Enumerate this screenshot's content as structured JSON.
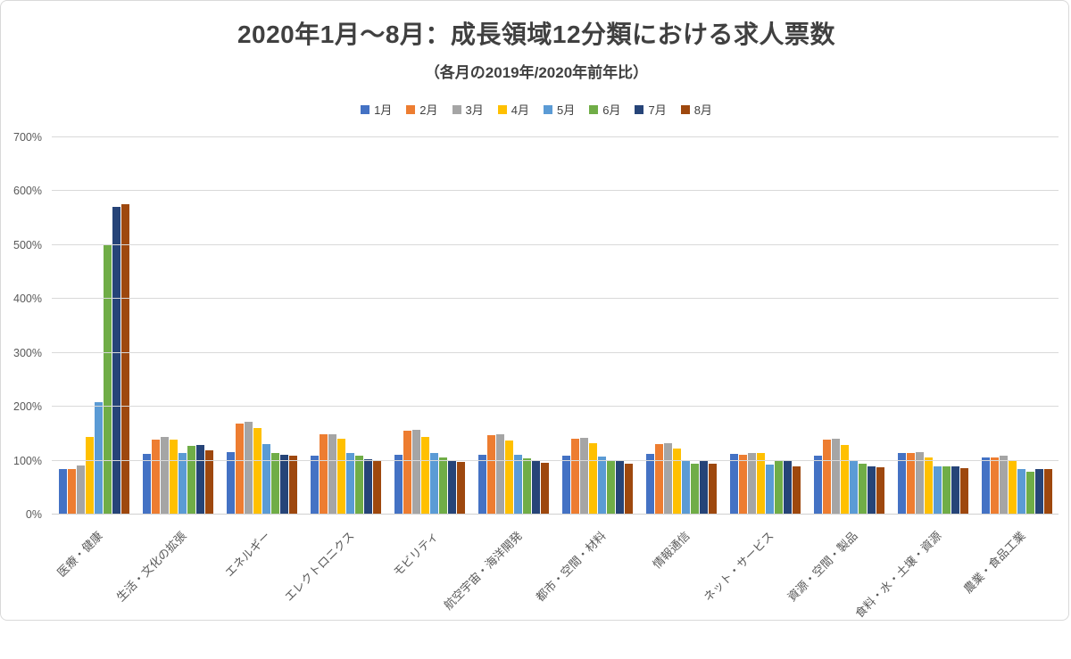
{
  "page": {
    "background": "#ffffff",
    "border_color": "#d9d9d9"
  },
  "colors": {
    "title_text": "#404040",
    "axis_text": "#595959",
    "gridline": "#d9d9d9"
  },
  "chart_data": {
    "type": "bar",
    "title": "2020年1月～8月：成長領域12分類における求人票数",
    "subtitle": "（各月の2019年/2020年前年比）",
    "xlabel": "",
    "ylabel": "",
    "ylim": [
      0,
      700
    ],
    "ytick_step": 100,
    "ytick_labels_top_to_bottom": [
      "700%",
      "600%",
      "500%",
      "400%",
      "300%",
      "200%",
      "100%",
      "0%"
    ],
    "grid": true,
    "legend_position": "top",
    "categories": [
      "医療・健康",
      "生活・文化の拡張",
      "エネルギー",
      "エレクトロニクス",
      "モビリティ",
      "航空宇宙・海洋開発",
      "都市・空間・材料",
      "情報通信",
      "ネット・サービス",
      "資源・空間・製品",
      "食料・水・土壌・資源",
      "農業・食品工業"
    ],
    "series": [
      {
        "name": "1月",
        "color": "#4472C4",
        "values": [
          83,
          111,
          115,
          107,
          110,
          110,
          108,
          111,
          111,
          108,
          112,
          105
        ]
      },
      {
        "name": "2月",
        "color": "#ED7D31",
        "values": [
          82,
          137,
          167,
          147,
          154,
          145,
          139,
          129,
          110,
          137,
          113,
          105
        ]
      },
      {
        "name": "3月",
        "color": "#A5A5A5",
        "values": [
          90,
          142,
          170,
          148,
          155,
          147,
          141,
          130,
          113,
          139,
          115,
          107
        ]
      },
      {
        "name": "4月",
        "color": "#FFC000",
        "values": [
          143,
          137,
          159,
          139,
          143,
          135,
          130,
          120,
          113,
          127,
          105,
          100
        ]
      },
      {
        "name": "5月",
        "color": "#5B9BD5",
        "values": [
          207,
          113,
          129,
          112,
          112,
          109,
          106,
          98,
          91,
          99,
          88,
          82
        ]
      },
      {
        "name": "6月",
        "color": "#70AD47",
        "values": [
          500,
          125,
          113,
          108,
          104,
          102,
          100,
          92,
          98,
          92,
          88,
          77
        ]
      },
      {
        "name": "7月",
        "color": "#264478",
        "values": [
          570,
          127,
          110,
          101,
          100,
          99,
          98,
          97,
          97,
          87,
          87,
          83
        ]
      },
      {
        "name": "8月",
        "color": "#9E480E",
        "values": [
          575,
          118,
          107,
          98,
          96,
          95,
          93,
          93,
          88,
          86,
          85,
          82
        ]
      }
    ]
  }
}
